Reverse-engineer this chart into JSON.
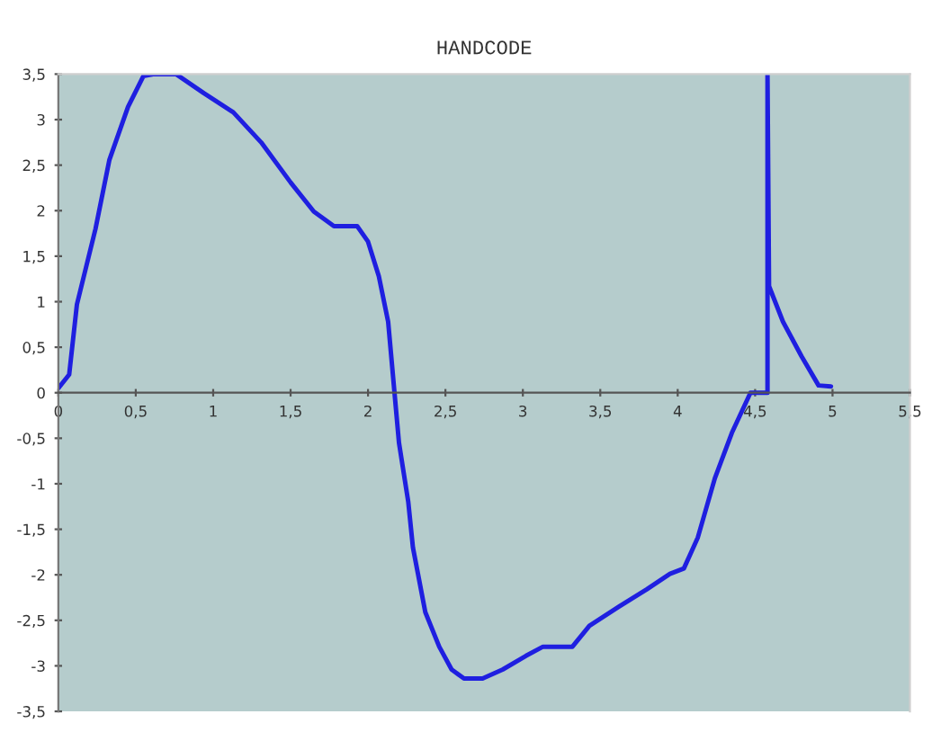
{
  "chart_data": {
    "type": "line",
    "title": "HANDCODE",
    "x": [
      0.0,
      0.07,
      0.12,
      0.24,
      0.33,
      0.45,
      0.55,
      0.62,
      0.76,
      0.94,
      1.13,
      1.31,
      1.5,
      1.65,
      1.78,
      1.93,
      2.0,
      2.07,
      2.13,
      2.17,
      2.2,
      2.26,
      2.29,
      2.37,
      2.46,
      2.54,
      2.62,
      2.74,
      2.87,
      3.02,
      3.13,
      3.32,
      3.43,
      3.62,
      3.8,
      3.95,
      4.04,
      4.13,
      4.24,
      4.35,
      4.47,
      4.57,
      4.58,
      4.58,
      4.59,
      4.68,
      4.8,
      4.91,
      4.99
    ],
    "series": [
      {
        "color": "#1f1fe0",
        "values": [
          0.05,
          0.2,
          0.97,
          1.8,
          2.56,
          3.14,
          3.48,
          3.5,
          3.5,
          3.29,
          3.08,
          2.75,
          2.31,
          1.99,
          1.83,
          1.83,
          1.66,
          1.28,
          0.78,
          0.02,
          -0.55,
          -1.2,
          -1.7,
          -2.41,
          -2.79,
          -3.04,
          -3.14,
          -3.14,
          -3.04,
          -2.89,
          -2.79,
          -2.79,
          -2.56,
          -2.35,
          -2.16,
          -1.99,
          -1.93,
          -1.59,
          -0.94,
          -0.44,
          0,
          0,
          0,
          3.5,
          1.17,
          0.78,
          0.4,
          0.08,
          0.07
        ]
      }
    ],
    "xlim": [
      0,
      5.5
    ],
    "ylim": [
      -3.5,
      3.5
    ],
    "xticks": [
      0,
      {
        "value": 0.5,
        "label": "0,5"
      },
      1,
      {
        "value": 1.5,
        "label": "1,5"
      },
      2,
      {
        "value": 2.5,
        "label": "2,5"
      },
      3,
      {
        "value": 3.5,
        "label": "3,5"
      },
      4,
      {
        "value": 4.5,
        "label": "4,5"
      },
      5,
      {
        "value": 5.5,
        "label": "5,5"
      }
    ],
    "yticks": [
      {
        "value": -3.5,
        "label": "-3,5"
      },
      -3,
      {
        "value": -2.5,
        "label": "-2,5"
      },
      -2,
      {
        "value": -1.5,
        "label": "-1,5"
      },
      -1,
      {
        "value": -0.5,
        "label": "-0,5"
      },
      0,
      {
        "value": 0.5,
        "label": "0,5"
      },
      1,
      {
        "value": 1.5,
        "label": "1,5"
      },
      2,
      {
        "value": 2.5,
        "label": "2,5"
      },
      3,
      {
        "value": 3.5,
        "label": "3,5"
      }
    ],
    "grid": false,
    "legend": false,
    "marker": "none",
    "line_style": "solid"
  }
}
